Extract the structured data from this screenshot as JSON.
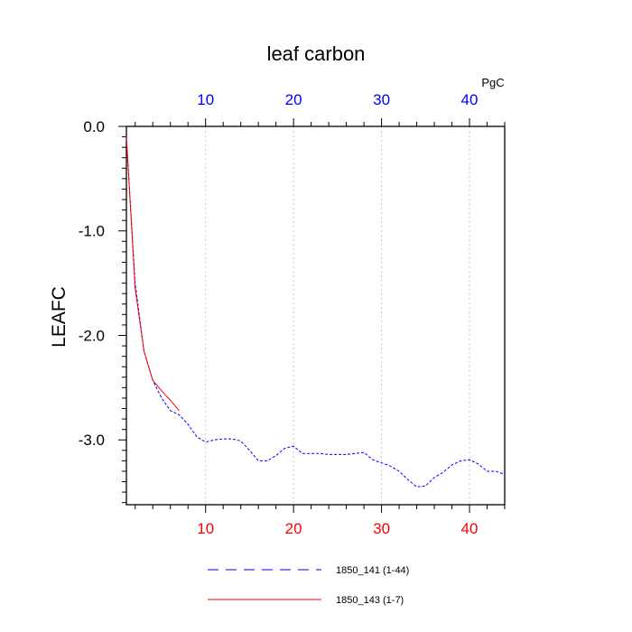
{
  "chart_data": {
    "type": "line",
    "title": "leaf carbon",
    "ylabel": "LEAFC",
    "units": "PgC",
    "xlim": [
      1,
      44
    ],
    "ylim": [
      -3.62,
      0.0
    ],
    "x_ticks": [
      10,
      20,
      30,
      40
    ],
    "y_ticks": [
      0.0,
      -1.0,
      -2.0,
      -3.0
    ],
    "y_tick_labels": [
      "0.0",
      "-1.0",
      "-2.0",
      "-3.0"
    ],
    "bottom_tick_color": "#ff0000",
    "top_tick_color": "#0000ff",
    "grid": "vertical dashed at major x ticks",
    "legend_position": "bottom",
    "series": [
      {
        "name": "1850_141 (1-44)",
        "color": "#0000ff",
        "dash": "dashed",
        "x": [
          1,
          2,
          3,
          4,
          5,
          6,
          7,
          8,
          9,
          10,
          11,
          12,
          13,
          14,
          15,
          16,
          17,
          18,
          19,
          20,
          21,
          22,
          23,
          24,
          25,
          26,
          27,
          28,
          29,
          30,
          31,
          32,
          33,
          34,
          35,
          36,
          37,
          38,
          39,
          40,
          41,
          42,
          43,
          44
        ],
        "y": [
          -0.1,
          -1.5,
          -2.15,
          -2.43,
          -2.6,
          -2.72,
          -2.76,
          -2.85,
          -2.97,
          -3.02,
          -3.0,
          -2.99,
          -2.99,
          -3.01,
          -3.1,
          -3.2,
          -3.2,
          -3.15,
          -3.08,
          -3.06,
          -3.13,
          -3.13,
          -3.13,
          -3.14,
          -3.14,
          -3.14,
          -3.13,
          -3.12,
          -3.19,
          -3.22,
          -3.25,
          -3.3,
          -3.38,
          -3.45,
          -3.44,
          -3.36,
          -3.31,
          -3.24,
          -3.2,
          -3.19,
          -3.23,
          -3.3,
          -3.3,
          -3.33
        ]
      },
      {
        "name": "1850_143 (1-7)",
        "color": "#ff0000",
        "dash": "solid",
        "x": [
          1,
          2,
          3,
          4,
          5,
          6,
          7
        ],
        "y": [
          -0.1,
          -1.55,
          -2.15,
          -2.43,
          -2.53,
          -2.62,
          -2.72
        ]
      }
    ]
  }
}
